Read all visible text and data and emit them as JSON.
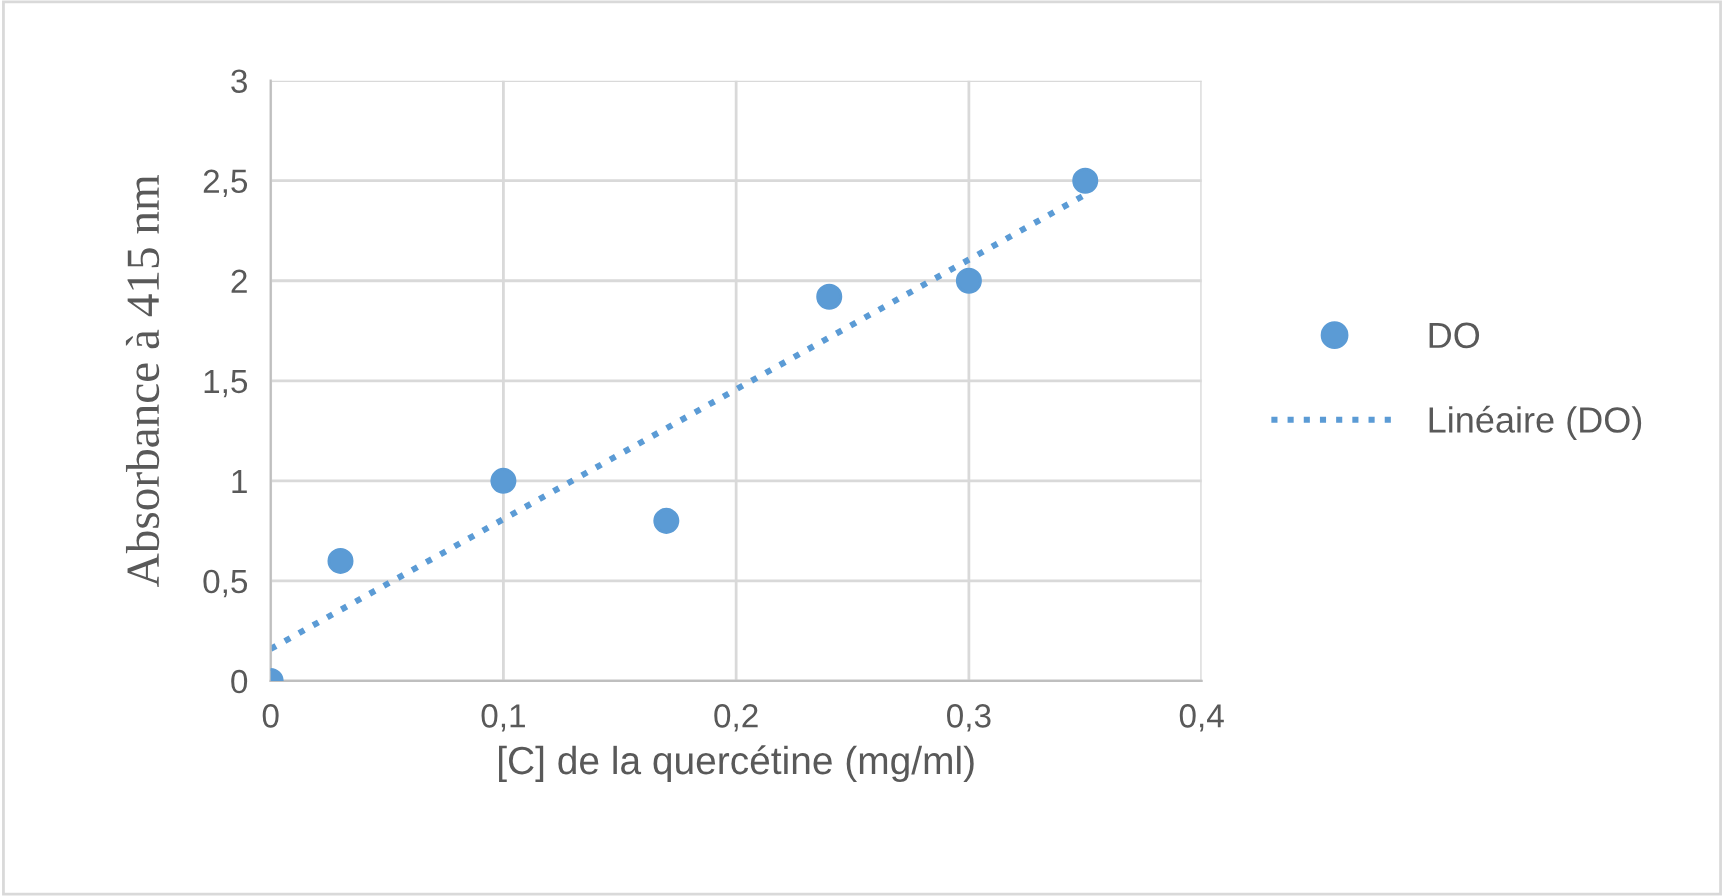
{
  "chart_data": {
    "type": "scatter",
    "xlabel": "[C] de la quercétine (mg/ml)",
    "ylabel": "Absorbance à 415 nm",
    "xlim": [
      0,
      0.4
    ],
    "xticks": [
      {
        "value": 0,
        "label": "0"
      },
      {
        "value": 0.1,
        "label": "0,1"
      },
      {
        "value": 0.2,
        "label": "0,2"
      },
      {
        "value": 0.3,
        "label": "0,3"
      },
      {
        "value": 0.4,
        "label": "0,4"
      }
    ],
    "ylim": [
      0,
      3
    ],
    "yticks": [
      {
        "value": 0,
        "label": "0"
      },
      {
        "value": 0.5,
        "label": "0,5"
      },
      {
        "value": 1,
        "label": "1"
      },
      {
        "value": 1.5,
        "label": "1,5"
      },
      {
        "value": 2,
        "label": "2"
      },
      {
        "value": 2.5,
        "label": "2,5"
      },
      {
        "value": 3,
        "label": "3"
      }
    ],
    "grid": true,
    "legend": "right",
    "series": [
      {
        "name": "DO",
        "color": "#5b9bd5",
        "marker": "circle",
        "x": [
          0,
          0.03,
          0.1,
          0.17,
          0.24,
          0.3,
          0.35
        ],
        "values": [
          0,
          0.6,
          1.0,
          0.8,
          1.92,
          2.0,
          2.5
        ]
      },
      {
        "name": "Linéaire (DO)",
        "type": "line",
        "color": "#5b9bd5",
        "line_style": "dotted",
        "x": [
          0,
          0.35
        ],
        "values": [
          0.16,
          2.43
        ]
      }
    ]
  }
}
